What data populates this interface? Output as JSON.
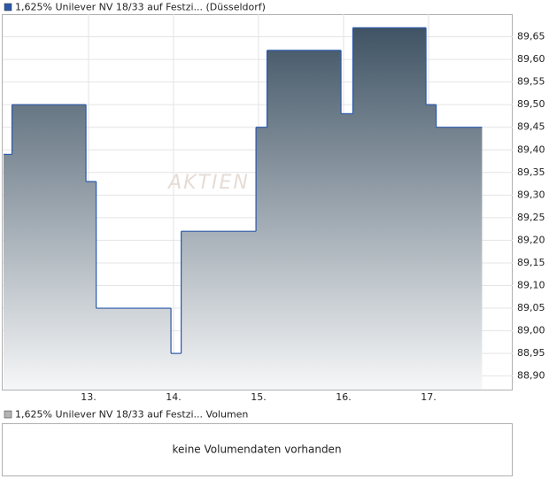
{
  "chart_data": [
    {
      "type": "step",
      "series": [
        {
          "name": "1,625% Unilever NV 18/33 auf Festzi... (Düsseldorf)",
          "color": "#2b58a8",
          "values": [
            89.39,
            89.5,
            89.33,
            89.05,
            88.95,
            89.22,
            89.45,
            89.62,
            89.48,
            89.67,
            89.5,
            89.45,
            89.45
          ]
        }
      ],
      "x": [
        12.0,
        12.1,
        12.97,
        13.09,
        13.97,
        14.09,
        14.97,
        15.1,
        15.97,
        16.11,
        16.97,
        17.09,
        17.63
      ],
      "xlim": [
        11.99,
        17.99
      ],
      "xticks": [
        {
          "value": 13,
          "label": "13."
        },
        {
          "value": 14,
          "label": "14."
        },
        {
          "value": 15,
          "label": "15."
        },
        {
          "value": 16,
          "label": "16."
        },
        {
          "value": 17,
          "label": "17."
        }
      ],
      "ylim": [
        88.87,
        89.7
      ],
      "yticks": [
        {
          "value": 88.9,
          "label": "88,90"
        },
        {
          "value": 88.95,
          "label": "88,95"
        },
        {
          "value": 89.0,
          "label": "89,00"
        },
        {
          "value": 89.05,
          "label": "89,05"
        },
        {
          "value": 89.1,
          "label": "89,10"
        },
        {
          "value": 89.15,
          "label": "89,15"
        },
        {
          "value": 89.2,
          "label": "89,20"
        },
        {
          "value": 89.25,
          "label": "89,25"
        },
        {
          "value": 89.3,
          "label": "89,30"
        },
        {
          "value": 89.35,
          "label": "89,35"
        },
        {
          "value": 89.4,
          "label": "89,40"
        },
        {
          "value": 89.45,
          "label": "89,45"
        },
        {
          "value": 89.5,
          "label": "89,50"
        },
        {
          "value": 89.55,
          "label": "89,55"
        },
        {
          "value": 89.6,
          "label": "89,60"
        },
        {
          "value": 89.65,
          "label": "89,65"
        }
      ],
      "grid": true,
      "watermark": "AKTIEN"
    },
    {
      "type": "volume",
      "series": [
        {
          "name": "1,625% Unilever NV 18/33 auf Festzi... Volumen",
          "color": "#b4b4b4"
        }
      ],
      "message": "keine Volumendaten vorhanden"
    }
  ]
}
